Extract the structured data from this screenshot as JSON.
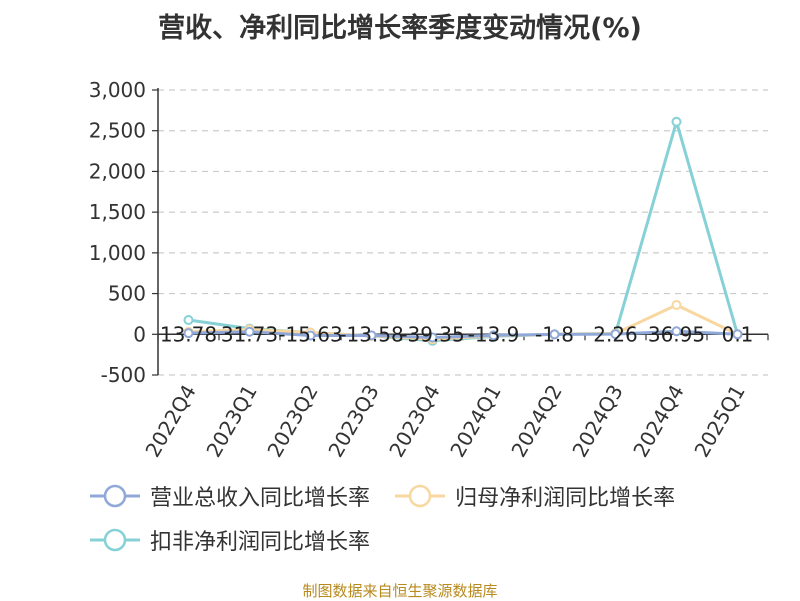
{
  "chart_data": {
    "type": "line",
    "title": "营收、净利同比增长率季度变动情况(%)",
    "categories": [
      "2022Q4",
      "2023Q1",
      "2023Q2",
      "2023Q3",
      "2023Q4",
      "2024Q1",
      "2024Q2",
      "2024Q3",
      "2024Q4",
      "2025Q1"
    ],
    "ylim": [
      -500,
      3000
    ],
    "yticks": [
      "3,000",
      "2,500",
      "2,000",
      "1,500",
      "1,000",
      "500",
      "0",
      "-500"
    ],
    "ytick_values": [
      3000,
      2500,
      2000,
      1500,
      1000,
      500,
      0,
      -500
    ],
    "grid": true,
    "legend_position": "bottom",
    "series": [
      {
        "name": "营业总收入同比增长率",
        "color": "#8fa8d8",
        "values": [
          13.78,
          31.73,
          -15.63,
          -13.58,
          -39.35,
          -13.9,
          -1.8,
          2.26,
          36.95,
          0.1
        ],
        "labels": [
          "13.78",
          "31.73",
          "-15.63",
          "-13.58",
          "-39.35",
          "-13.9",
          "-1.8",
          "2.26",
          "36.95",
          "0.1"
        ]
      },
      {
        "name": "归母净利润同比增长率",
        "color": "#f9d7a0",
        "values": [
          30,
          60,
          20,
          -20,
          -60,
          -20,
          0,
          10,
          360,
          0
        ]
      },
      {
        "name": "扣非净利润同比增长率",
        "color": "#86d1d6",
        "values": [
          175,
          70,
          20,
          -20,
          -80,
          -25,
          0,
          10,
          2610,
          0
        ]
      }
    ]
  },
  "source": "制图数据来自恒生聚源数据库"
}
